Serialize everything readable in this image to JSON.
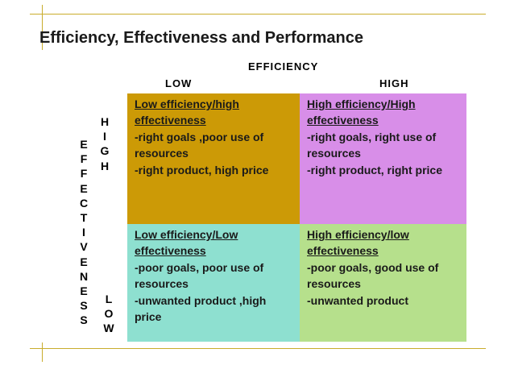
{
  "title": "Efficiency, Effectiveness and Performance",
  "axes": {
    "x_label": "EFFICIENCY",
    "x_low": "LOW",
    "x_high": "HIGH",
    "y_label_letters": [
      "E",
      "F",
      "F",
      "E",
      "C",
      "T",
      "I",
      "V",
      "E",
      "N",
      "E",
      "S",
      "S"
    ],
    "y_high_letters": [
      "H",
      "I",
      "G",
      "H"
    ],
    "y_low_letters": [
      "L",
      "O",
      "W"
    ]
  },
  "quadrants": [
    {
      "heading": "Low efficiency/high effectiveness",
      "points": [
        "-right goals ,poor use of resources",
        "-right product, high price"
      ],
      "color": "#cc9a06"
    },
    {
      "heading": "High efficiency/High effectiveness",
      "points": [
        "-right goals, right use of resources",
        "-right product, right price"
      ],
      "color": "#d88ee8"
    },
    {
      "heading": "Low efficiency/Low effectiveness",
      "points": [
        "-poor goals, poor use of resources",
        "-unwanted product ,high price"
      ],
      "color": "#8ee0d0"
    },
    {
      "heading": "High efficiency/low effectiveness",
      "points": [
        "-poor goals, good use of resources",
        "-unwanted product"
      ],
      "color": "#b6e08c"
    }
  ],
  "accent_color": "#c9ac2c"
}
